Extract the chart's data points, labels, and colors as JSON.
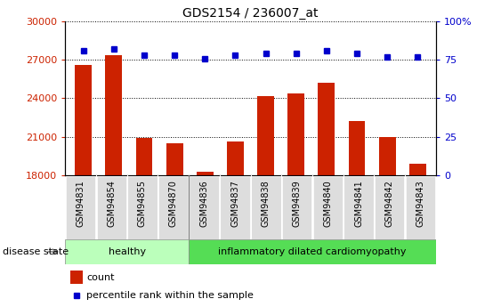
{
  "title": "GDS2154 / 236007_at",
  "samples": [
    "GSM94831",
    "GSM94854",
    "GSM94855",
    "GSM94870",
    "GSM94836",
    "GSM94837",
    "GSM94838",
    "GSM94839",
    "GSM94840",
    "GSM94841",
    "GSM94842",
    "GSM94843"
  ],
  "counts": [
    26600,
    27400,
    20900,
    20500,
    18250,
    20650,
    24200,
    24400,
    25200,
    22200,
    21000,
    18900
  ],
  "percentile": [
    81,
    82,
    78,
    78,
    76,
    78,
    79,
    79,
    81,
    79,
    77,
    77
  ],
  "ylim_left": [
    18000,
    30000
  ],
  "ylim_right": [
    0,
    100
  ],
  "yticks_left": [
    18000,
    21000,
    24000,
    27000,
    30000
  ],
  "yticks_right": [
    0,
    25,
    50,
    75,
    100
  ],
  "bar_color": "#cc2200",
  "dot_color": "#0000cc",
  "background_color": "#ffffff",
  "healthy_color": "#bbffbb",
  "disease_color": "#55dd55",
  "healthy_samples": 4,
  "disease_label": "inflammatory dilated cardiomyopathy",
  "healthy_label": "healthy",
  "legend_count_label": "count",
  "legend_pct_label": "percentile rank within the sample",
  "disease_state_label": "disease state",
  "grid_color": "#000000",
  "left_tick_color": "#cc2200",
  "right_tick_color": "#0000cc",
  "xlabel_bg": "#dddddd",
  "right_tick_labels": [
    "0",
    "25",
    "50",
    "75",
    "100%"
  ]
}
